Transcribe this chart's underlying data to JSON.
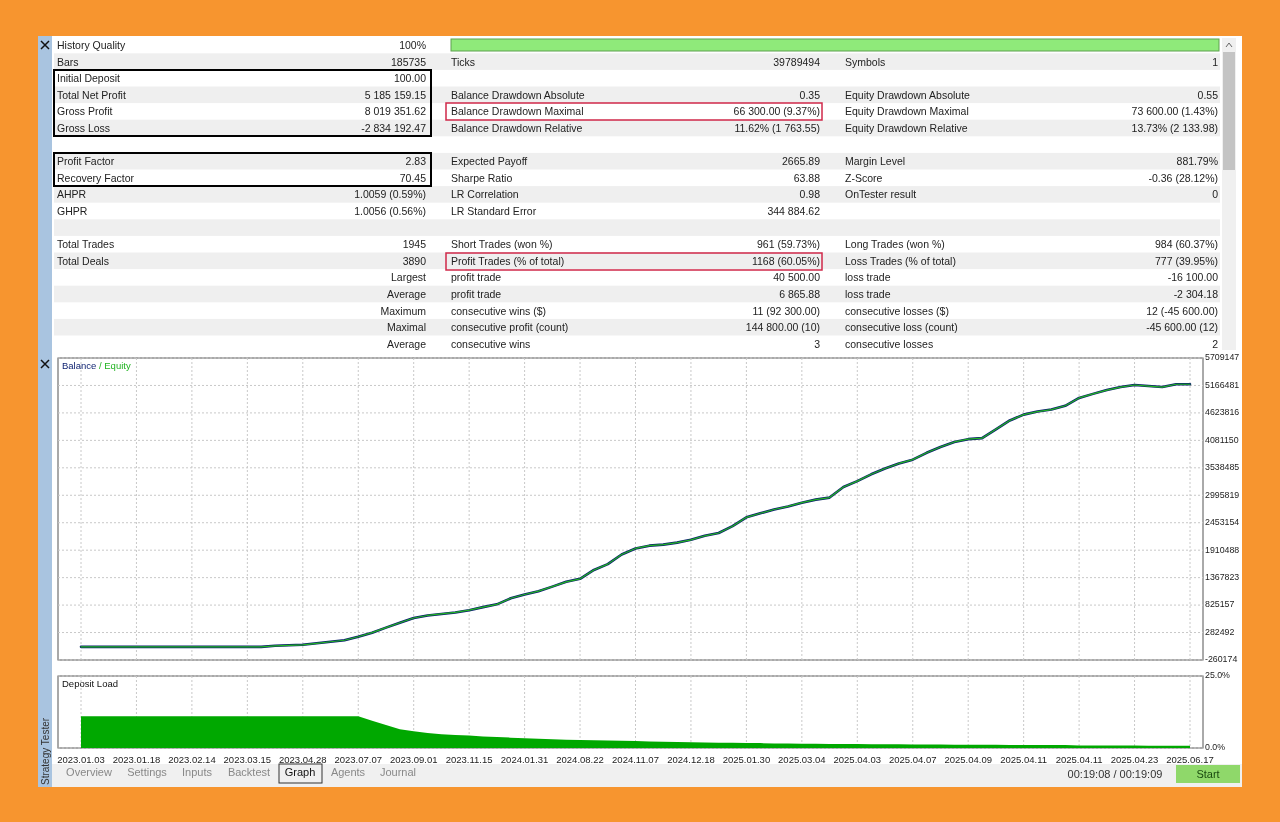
{
  "chart_data": [
    {
      "type": "other",
      "annotations": [
        "History Quality",
        "100%",
        "Bars",
        "185735",
        "Ticks",
        "39789494",
        "Symbols",
        "1",
        "Initial Deposit",
        "100.00",
        "Total Net Profit",
        "5 185 159.15",
        "Balance Drawdown Absolute",
        "0.35",
        "Equity Drawdown Absolute",
        "0.55",
        "Gross Profit",
        "8 019 351.62",
        "Balance Drawdown Maximal",
        "66 300.00 (9.37%)",
        "Equity Drawdown Maximal",
        "73 600.00 (1.43%)",
        "Gross Loss",
        "-2 834 192.47",
        "Balance Drawdown Relative",
        "11.62% (1 763.55)",
        "Equity Drawdown Relative",
        "13.73% (2 133.98)",
        "Profit Factor",
        "2.83",
        "Expected Payoff",
        "2665.89",
        "Margin Level",
        "881.79%",
        "Recovery Factor",
        "70.45",
        "Sharpe Ratio",
        "63.88",
        "Z-Score",
        "-0.36 (28.12%)",
        "AHPR",
        "1.0059 (0.59%)",
        "LR Correlation",
        "0.98",
        "OnTester result",
        "0",
        "GHPR",
        "1.0056 (0.56%)",
        "LR Standard Error",
        "344 884.62",
        "Total Trades",
        "1945",
        "Short Trades (won %)",
        "961 (59.73%)",
        "Long Trades (won %)",
        "984 (60.37%)",
        "Total Deals",
        "3890",
        "Profit Trades (% of total)",
        "1168 (60.05%)",
        "Loss Trades (% of total)",
        "777 (39.95%)",
        "Largest",
        "profit trade",
        "40 500.00",
        "loss trade",
        "-16 100.00",
        "Average",
        "profit trade",
        "6 865.88",
        "loss trade",
        "-2 304.18",
        "Maximum",
        "consecutive wins ($)",
        "11 (92 300.00)",
        "consecutive losses ($)",
        "12 (-45 600.00)",
        "Maximal",
        "consecutive profit (count)",
        "144 800.00 (10)",
        "consecutive loss (count)",
        "-45 600.00 (12)",
        "Average",
        "consecutive wins",
        "3",
        "consecutive losses",
        "2",
        "Overview",
        "Settings",
        "Inputs",
        "Backtest",
        "Graph",
        "Agents",
        "Journal",
        "Strategy Tester",
        "00:19:08 / 00:19:09",
        "Start"
      ]
    },
    {
      "type": "line",
      "categories": [
        "2023.01.03",
        null,
        null,
        null,
        "2023.01.18",
        null,
        null,
        null,
        "2023.02.14",
        null,
        null,
        null,
        "2023.03.15",
        null,
        null,
        null,
        "2023.04.28",
        null,
        null,
        null,
        "2023.07.07",
        null,
        null,
        null,
        "2023.09.01",
        null,
        null,
        null,
        "2023.11.15",
        null,
        null,
        null,
        "2024.01.31",
        null,
        null,
        null,
        "2024.08.22",
        null,
        null,
        null,
        "2024.11.07",
        null,
        null,
        null,
        "2024.12.18",
        null,
        null,
        null,
        "2025.01.30",
        null,
        null,
        null,
        "2025.03.04",
        null,
        null,
        null,
        "2025.04.03",
        null,
        null,
        null,
        "2025.04.07",
        null,
        null,
        null,
        "2025.04.09",
        null,
        null,
        null,
        "2025.04.11",
        null,
        null,
        null,
        "2025.04.11",
        null,
        null,
        null,
        "2025.04.23",
        null,
        null,
        null,
        "2025.06.17"
      ],
      "series": [
        {
          "name": "Equity",
          "color": "#22b422",
          "values": [
            0,
            0,
            0,
            0,
            0,
            0,
            0,
            0,
            0,
            0,
            0,
            0,
            0,
            0,
            20000,
            30000,
            40000,
            70000,
            100000,
            130000,
            200000,
            280000,
            380000,
            475000,
            570000,
            620000,
            650000,
            680000,
            725000,
            785000,
            840000,
            960000,
            1035000,
            1100000,
            1190000,
            1285000,
            1345000,
            1520000,
            1635000,
            1825000,
            1945000,
            2000000,
            2020000,
            2060000,
            2115000,
            2195000,
            2250000,
            2385000,
            2560000,
            2640000,
            2715000,
            2775000,
            2850000,
            2910000,
            2950000,
            3160000,
            3275000,
            3410000,
            3525000,
            3625000,
            3700000,
            3835000,
            3950000,
            4050000,
            4105000,
            4125000,
            4300000,
            4475000,
            4590000,
            4650000,
            4690000,
            4765000,
            4920000,
            5000000,
            5075000,
            5135000,
            5175000,
            5155000,
            5135000,
            5190000,
            5190000
          ]
        },
        {
          "name": "Balance",
          "color": "#0a1e6e",
          "values": [
            0,
            0,
            0,
            0,
            0,
            0,
            0,
            0,
            0,
            0,
            0,
            0,
            0,
            0,
            20000,
            30000,
            40000,
            70000,
            100000,
            130000,
            200000,
            280000,
            380000,
            475000,
            570000,
            620000,
            650000,
            680000,
            725000,
            785000,
            840000,
            960000,
            1035000,
            1100000,
            1190000,
            1285000,
            1345000,
            1520000,
            1635000,
            1825000,
            1945000,
            2000000,
            2020000,
            2060000,
            2115000,
            2195000,
            2250000,
            2385000,
            2560000,
            2640000,
            2715000,
            2775000,
            2850000,
            2910000,
            2950000,
            3160000,
            3275000,
            3410000,
            3525000,
            3625000,
            3700000,
            3835000,
            3950000,
            4050000,
            4105000,
            4125000,
            4300000,
            4475000,
            4590000,
            4650000,
            4690000,
            4765000,
            4920000,
            5000000,
            5075000,
            5135000,
            5175000,
            5155000,
            5135000,
            5190000,
            5190000
          ]
        }
      ],
      "ylim": [
        -260174,
        5709147
      ],
      "yticks": [
        -260174,
        282492,
        825157,
        1367823,
        1910488,
        2453154,
        2995819,
        3538485,
        4081150,
        4623816,
        5166481,
        5709147
      ],
      "grid": true,
      "legend": "top left",
      "tick_labels": "y",
      "annotations": [
        "/"
      ]
    },
    {
      "type": "area",
      "title": "Deposit Load",
      "categories": [
        "2023.01.03",
        null,
        null,
        null,
        "2023.01.18",
        null,
        null,
        null,
        "2023.02.14",
        null,
        null,
        null,
        "2023.03.15",
        null,
        null,
        null,
        "2023.04.28",
        null,
        null,
        null,
        "2023.07.07",
        null,
        null,
        null,
        "2023.09.01",
        null,
        null,
        null,
        "2023.11.15",
        null,
        null,
        null,
        "2024.01.31",
        null,
        null,
        null,
        "2024.08.22",
        null,
        null,
        null,
        "2024.11.07",
        null,
        null,
        null,
        "2024.12.18",
        null,
        null,
        null,
        "2025.01.30",
        null,
        null,
        null,
        "2025.03.04",
        null,
        null,
        null,
        "2025.04.03",
        null,
        null,
        null,
        "2025.04.07",
        null,
        null,
        null,
        "2025.04.09",
        null,
        null,
        null,
        "2025.04.11",
        null,
        null,
        null,
        "2025.04.11",
        null,
        null,
        null,
        "2025.04.23",
        null,
        null,
        null,
        "2025.06.17"
      ],
      "series": [
        {
          "color": "#00a800",
          "values": [
            11,
            11,
            11,
            11,
            11,
            11,
            11,
            11,
            11,
            11,
            11,
            11,
            11,
            11,
            11,
            11,
            11,
            11,
            11,
            11,
            11,
            9.5,
            8,
            6.5,
            5.8,
            5.2,
            4.8,
            4.5,
            4.3,
            4.0,
            3.8,
            3.6,
            3.4,
            3.2,
            3.0,
            2.9,
            2.8,
            2.7,
            2.6,
            2.5,
            2.4,
            2.3,
            2.2,
            2.1,
            2.0,
            1.9,
            1.8,
            1.8,
            1.7,
            1.7,
            1.6,
            1.6,
            1.5,
            1.5,
            1.4,
            1.4,
            1.4,
            1.3,
            1.3,
            1.3,
            1.2,
            1.2,
            1.2,
            1.1,
            1.1,
            1.1,
            1.1,
            1.0,
            1.0,
            1.0,
            1.0,
            1.0,
            0.9,
            0.9,
            0.9,
            0.9,
            0.9,
            0.8,
            0.8,
            0.8,
            0.8
          ]
        }
      ],
      "ylim": [
        0,
        25
      ],
      "yticks": [
        {
          "value": 0,
          "label": "0.0%"
        },
        {
          "value": 25,
          "label": "25.0%"
        }
      ],
      "grid": true
    }
  ]
}
